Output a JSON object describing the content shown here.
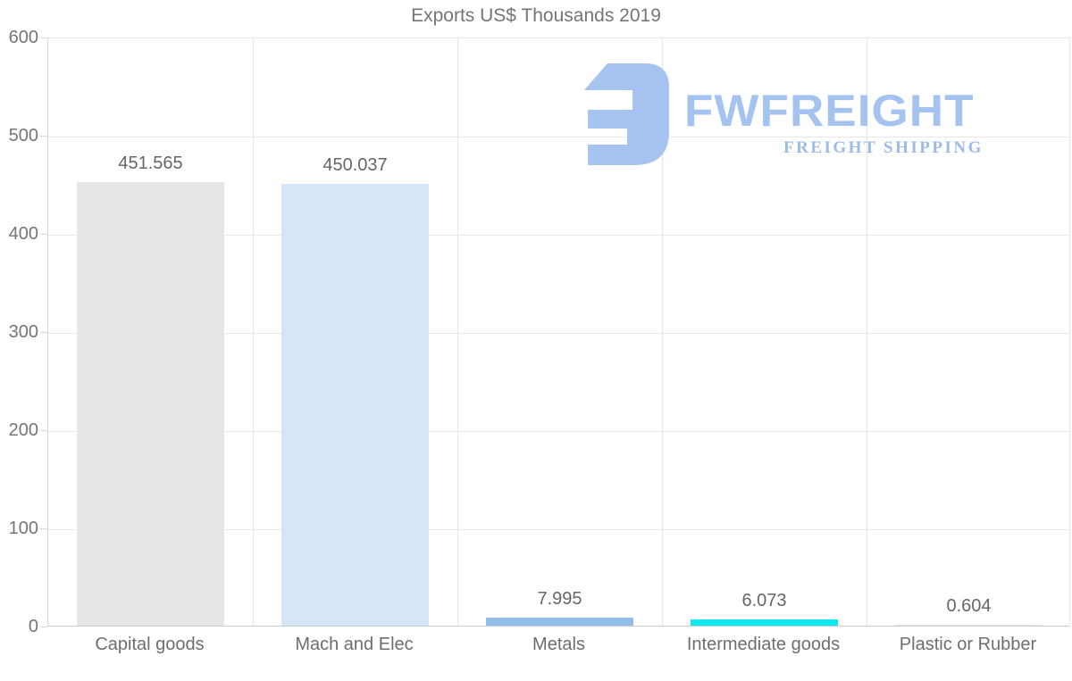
{
  "title": "Exports US$ Thousands 2019",
  "logo": {
    "brand": "FWFREIGHT",
    "tagline": "FREIGHT SHIPPING",
    "icon": "fwfreight-logo-icon",
    "brand_color": "#a5c3ef",
    "tagline_color": "#9cbbe9",
    "icon_color": "#a7c3ef"
  },
  "palette": {
    "title_text": "#757575",
    "axis_text": "#757575",
    "category_text": "#6e6e6e",
    "value_text": "#666666",
    "gridline": "#e8e8e8",
    "axis_line": "#cccccc",
    "background": "#ffffff"
  },
  "chart_data": {
    "type": "bar",
    "title": "Exports US$ Thousands 2019",
    "categories": [
      "Capital goods",
      "Mach and Elec",
      "Metals",
      "Intermediate goods",
      "Plastic or Rubber"
    ],
    "values": [
      451.565,
      450.037,
      7.995,
      6.073,
      0.604
    ],
    "value_labels": [
      "451.565",
      "450.037",
      "7.995",
      "6.073",
      "0.604"
    ],
    "bar_colors": [
      "#e6e6e6",
      "#d7e5f8",
      "#92bfe8",
      "#0ce8ee",
      "#dfe6ee"
    ],
    "xlabel": "",
    "ylabel": "",
    "ylim": [
      0,
      600
    ],
    "ytick_step": 100,
    "ytick_labels": [
      "0",
      "100",
      "200",
      "300",
      "400",
      "500",
      "600"
    ],
    "grid": true,
    "legend": false
  }
}
